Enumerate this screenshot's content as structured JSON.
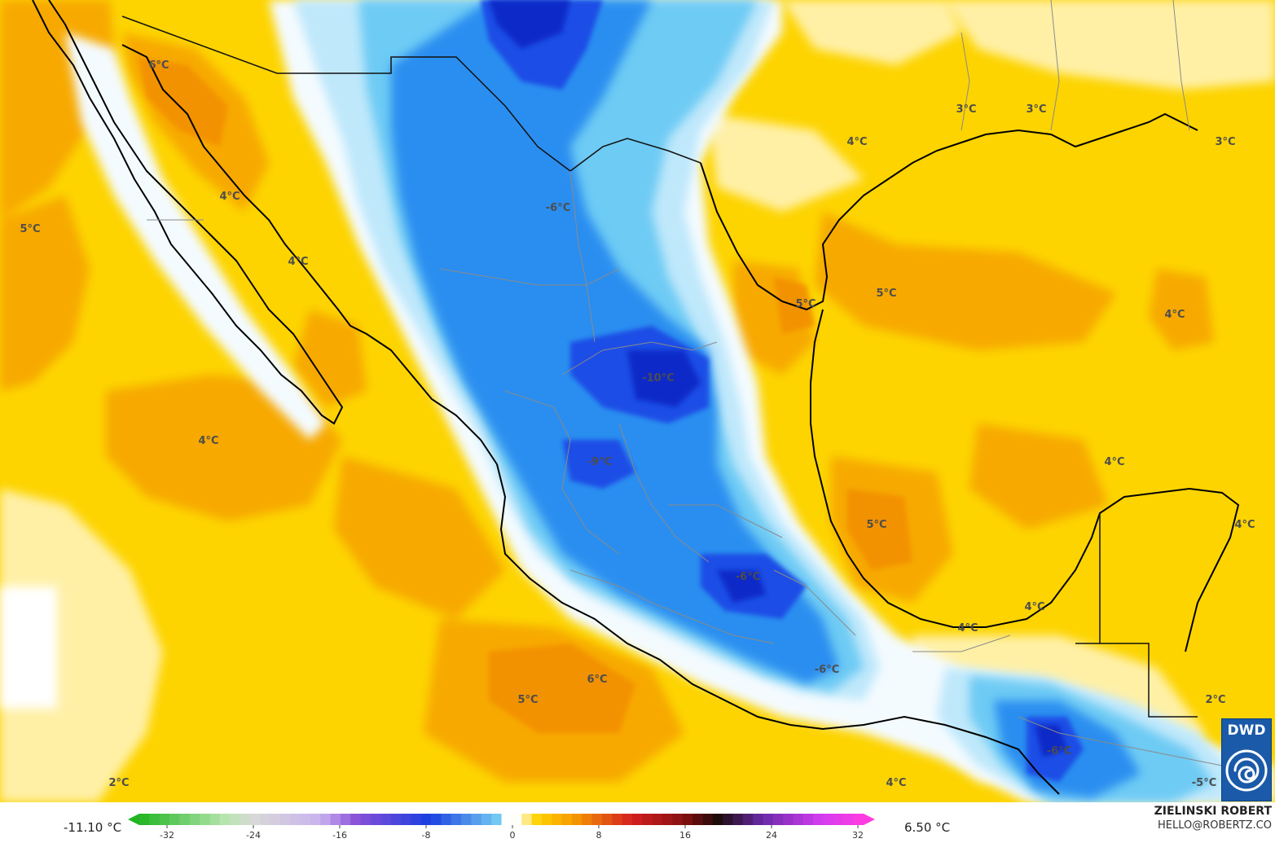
{
  "map": {
    "labels": [
      {
        "id": "l1",
        "text": "6°C"
      },
      {
        "id": "l2",
        "text": "4°C"
      },
      {
        "id": "l3",
        "text": "5°C"
      },
      {
        "id": "l4",
        "text": "4°C"
      },
      {
        "id": "l5",
        "text": "4°C"
      },
      {
        "id": "l6",
        "text": "-6°C"
      },
      {
        "id": "l7",
        "text": "3°C"
      },
      {
        "id": "l8",
        "text": "3°C"
      },
      {
        "id": "l9",
        "text": "4°C"
      },
      {
        "id": "l10",
        "text": "3°C"
      },
      {
        "id": "l11",
        "text": "5°C"
      },
      {
        "id": "l12",
        "text": "5°C"
      },
      {
        "id": "l13",
        "text": "4°C"
      },
      {
        "id": "l14",
        "text": "-10°C"
      },
      {
        "id": "l15",
        "text": "-9°C"
      },
      {
        "id": "l16",
        "text": "4°C"
      },
      {
        "id": "l17",
        "text": "5°C"
      },
      {
        "id": "l18",
        "text": "4°C"
      },
      {
        "id": "l19",
        "text": "-6°C"
      },
      {
        "id": "l20",
        "text": "4°C"
      },
      {
        "id": "l21",
        "text": "4°C"
      },
      {
        "id": "l22",
        "text": "-6°C"
      },
      {
        "id": "l23",
        "text": "6°C"
      },
      {
        "id": "l24",
        "text": "5°C"
      },
      {
        "id": "l25",
        "text": "2°C"
      },
      {
        "id": "l26",
        "text": "-6°C"
      },
      {
        "id": "l27",
        "text": "2°C"
      },
      {
        "id": "l28",
        "text": "4°C"
      },
      {
        "id": "l29",
        "text": "-5°C"
      }
    ]
  },
  "colorbar": {
    "min_label": "-11.10 °C",
    "max_label": "6.50 °C",
    "ticks": [
      "-32",
      "-24",
      "-16",
      "-8",
      "0",
      "8",
      "16",
      "24",
      "32"
    ],
    "colors": {
      "cold_extreme": "#22b422",
      "purple": "#8a4fd8",
      "blue": "#1a3fe0",
      "light_blue": "#78d2f4",
      "zero": "#ffffff",
      "yellow": "#ffd200",
      "orange": "#f59a00",
      "red": "#d42020",
      "dark": "#1a0a0a",
      "magenta": "#ff3ce0"
    }
  },
  "credit": {
    "name": "ZIELINSKI ROBERT",
    "email": "HELLO@ROBERTZ.CO"
  },
  "logo": {
    "text": "DWD",
    "icon": "swirl-icon"
  }
}
